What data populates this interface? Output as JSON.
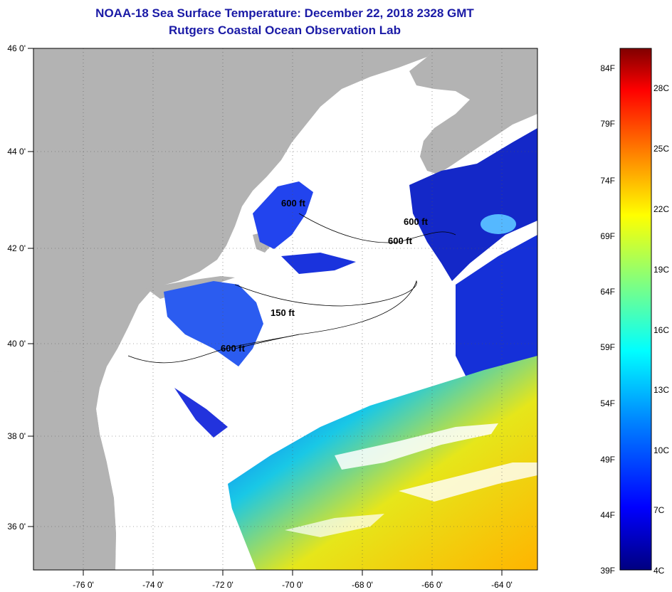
{
  "header": {
    "title": "NOAA-18 Sea Surface Temperature:  December 22, 2018 2328 GMT",
    "subtitle": "Rutgers Coastal Ocean Observation Lab"
  },
  "map": {
    "lat_labels": [
      "46 0'",
      "44 0'",
      "42 0'",
      "40 0'",
      "38 0'",
      "36 0'"
    ],
    "lon_labels": [
      "-76 0'",
      "-74 0'",
      "-72 0'",
      "-70 0'",
      "-68 0'",
      "-66 0'",
      "-64 0'"
    ],
    "contour_labels": [
      "600 ft",
      "600 ft",
      "600 ft",
      "150 ft",
      "600 ft"
    ],
    "colors": {
      "land": "#b3b3b3",
      "cloud": "#ffffff",
      "frame": "#000000"
    }
  },
  "colorbar": {
    "fahrenheit_labels": [
      "84F",
      "79F",
      "74F",
      "69F",
      "64F",
      "59F",
      "54F",
      "49F",
      "44F",
      "39F"
    ],
    "celsius_labels": [
      "28C",
      "25C",
      "22C",
      "19C",
      "16C",
      "13C",
      "10C",
      "7C",
      "4C"
    ],
    "gradient_stops": [
      "#000080",
      "#0000ff",
      "#0080ff",
      "#00ffff",
      "#80ff80",
      "#ffff00",
      "#ff8000",
      "#ff0000",
      "#800000"
    ]
  }
}
